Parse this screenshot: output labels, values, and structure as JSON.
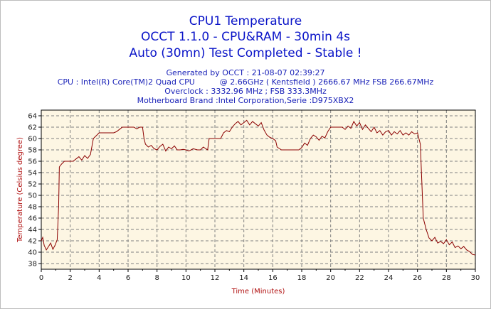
{
  "titles": {
    "main": "CPU1 Temperature",
    "sub": "OCCT 1.1.0 - CPU&RAM - 30min 4s",
    "status": "Auto (30mn) Test Completed - Stable !"
  },
  "info": {
    "generated": "Generated by OCCT : 21-08-07 02:39:27",
    "cpu": "CPU : Intel(R) Core(TM)2 Quad CPU          @ 2.66GHz ( Kentsfield ) 2666.67 MHz FSB 266.67MHz",
    "overclock": "Overclock : 3332.96 MHz ; FSB 333.3MHz",
    "motherboard": "Motherboard Brand :Intel Corporation,Serie :D975XBX2"
  },
  "colors": {
    "title": "#0a14c8",
    "plot_bg": "#fdf6e3",
    "line": "#8b0000",
    "axis_label": "#b01010",
    "grid": "#808080"
  },
  "chart_data": {
    "type": "line",
    "title": "CPU1 Temperature",
    "xlabel": "Time (Minutes)",
    "ylabel": "Temperature (Celsius degree)",
    "xlim": [
      0,
      30
    ],
    "ylim": [
      37,
      65
    ],
    "xticks": [
      "0",
      "2",
      "4",
      "6",
      "8",
      "10",
      "12",
      "14",
      "16",
      "18",
      "20",
      "22",
      "24",
      "26",
      "28",
      "30"
    ],
    "yticks": [
      "38",
      "40",
      "42",
      "44",
      "46",
      "48",
      "50",
      "52",
      "54",
      "56",
      "58",
      "60",
      "62",
      "64"
    ],
    "grid": true,
    "series": [
      {
        "values": [
          [
            0,
            42
          ],
          [
            0.1,
            42.6
          ],
          [
            0.2,
            41.2
          ],
          [
            0.35,
            40.4
          ],
          [
            0.5,
            41.0
          ],
          [
            0.65,
            41.6
          ],
          [
            0.8,
            40.5
          ],
          [
            0.95,
            41.2
          ],
          [
            1.1,
            42.2
          ],
          [
            1.2,
            48
          ],
          [
            1.25,
            55
          ],
          [
            1.4,
            55.5
          ],
          [
            1.6,
            56
          ],
          [
            1.9,
            56
          ],
          [
            2.2,
            56
          ],
          [
            2.4,
            56.4
          ],
          [
            2.6,
            56.8
          ],
          [
            2.8,
            56.2
          ],
          [
            3.0,
            57
          ],
          [
            3.2,
            56.5
          ],
          [
            3.4,
            57.2
          ],
          [
            3.6,
            60
          ],
          [
            3.8,
            60.5
          ],
          [
            4.0,
            61
          ],
          [
            4.5,
            61
          ],
          [
            5.0,
            61
          ],
          [
            5.2,
            61.2
          ],
          [
            5.4,
            61.6
          ],
          [
            5.6,
            62
          ],
          [
            6.0,
            62
          ],
          [
            6.4,
            62
          ],
          [
            6.6,
            61.7
          ],
          [
            6.8,
            62
          ],
          [
            7.0,
            62
          ],
          [
            7.1,
            60
          ],
          [
            7.2,
            59
          ],
          [
            7.4,
            58.5
          ],
          [
            7.6,
            58.8
          ],
          [
            7.8,
            58.2
          ],
          [
            8.0,
            58
          ],
          [
            8.2,
            58.6
          ],
          [
            8.4,
            59
          ],
          [
            8.6,
            57.8
          ],
          [
            8.8,
            58.5
          ],
          [
            9.0,
            58.2
          ],
          [
            9.2,
            58.7
          ],
          [
            9.4,
            58.0
          ],
          [
            9.6,
            58
          ],
          [
            9.8,
            58.1
          ],
          [
            10.0,
            58
          ],
          [
            10.2,
            57.8
          ],
          [
            10.5,
            58.2
          ],
          [
            10.8,
            58
          ],
          [
            11.0,
            58
          ],
          [
            11.2,
            58.5
          ],
          [
            11.5,
            58
          ],
          [
            11.6,
            60
          ],
          [
            12.0,
            60
          ],
          [
            12.4,
            60
          ],
          [
            12.6,
            61
          ],
          [
            12.8,
            61.4
          ],
          [
            13.0,
            61.2
          ],
          [
            13.2,
            62
          ],
          [
            13.4,
            62.6
          ],
          [
            13.6,
            63
          ],
          [
            13.8,
            62.4
          ],
          [
            14.0,
            62.8
          ],
          [
            14.2,
            63.2
          ],
          [
            14.4,
            62.4
          ],
          [
            14.6,
            63
          ],
          [
            14.8,
            62.6
          ],
          [
            15.0,
            62.2
          ],
          [
            15.2,
            62.8
          ],
          [
            15.4,
            61.5
          ],
          [
            15.6,
            60.6
          ],
          [
            15.8,
            60.2
          ],
          [
            16.0,
            60
          ],
          [
            16.2,
            59.6
          ],
          [
            16.3,
            58.5
          ],
          [
            16.6,
            58
          ],
          [
            17.0,
            58
          ],
          [
            17.4,
            58
          ],
          [
            17.8,
            58
          ],
          [
            18.0,
            58.4
          ],
          [
            18.2,
            59.2
          ],
          [
            18.4,
            58.8
          ],
          [
            18.6,
            60
          ],
          [
            18.8,
            60.6
          ],
          [
            19.0,
            60.3
          ],
          [
            19.2,
            59.7
          ],
          [
            19.4,
            60.4
          ],
          [
            19.6,
            60.1
          ],
          [
            19.8,
            61.2
          ],
          [
            20.0,
            62
          ],
          [
            20.4,
            62
          ],
          [
            20.8,
            62
          ],
          [
            21.0,
            61.6
          ],
          [
            21.2,
            62.2
          ],
          [
            21.4,
            61.8
          ],
          [
            21.6,
            63
          ],
          [
            21.8,
            62.2
          ],
          [
            22.0,
            62.8
          ],
          [
            22.2,
            61.6
          ],
          [
            22.4,
            62.4
          ],
          [
            22.6,
            61.8
          ],
          [
            22.8,
            61.2
          ],
          [
            23.0,
            62
          ],
          [
            23.2,
            61
          ],
          [
            23.4,
            61.4
          ],
          [
            23.6,
            60.6
          ],
          [
            23.8,
            61.2
          ],
          [
            24.0,
            61.4
          ],
          [
            24.2,
            60.6
          ],
          [
            24.4,
            61.2
          ],
          [
            24.6,
            60.8
          ],
          [
            24.8,
            61.4
          ],
          [
            25.0,
            60.6
          ],
          [
            25.2,
            61
          ],
          [
            25.4,
            60.6
          ],
          [
            25.6,
            61.2
          ],
          [
            25.8,
            60.8
          ],
          [
            26.0,
            61
          ],
          [
            26.2,
            59
          ],
          [
            26.4,
            46
          ],
          [
            26.6,
            44
          ],
          [
            26.8,
            42.5
          ],
          [
            27.0,
            42
          ],
          [
            27.2,
            42.6
          ],
          [
            27.4,
            41.6
          ],
          [
            27.6,
            41.9
          ],
          [
            27.8,
            41.5
          ],
          [
            28.0,
            42.2
          ],
          [
            28.2,
            41.3
          ],
          [
            28.4,
            41.8
          ],
          [
            28.6,
            40.8
          ],
          [
            28.8,
            41.1
          ],
          [
            29.0,
            40.6
          ],
          [
            29.2,
            41.0
          ],
          [
            29.4,
            40.4
          ],
          [
            29.6,
            40.1
          ],
          [
            29.8,
            39.6
          ],
          [
            30.0,
            39.5
          ]
        ]
      }
    ]
  }
}
